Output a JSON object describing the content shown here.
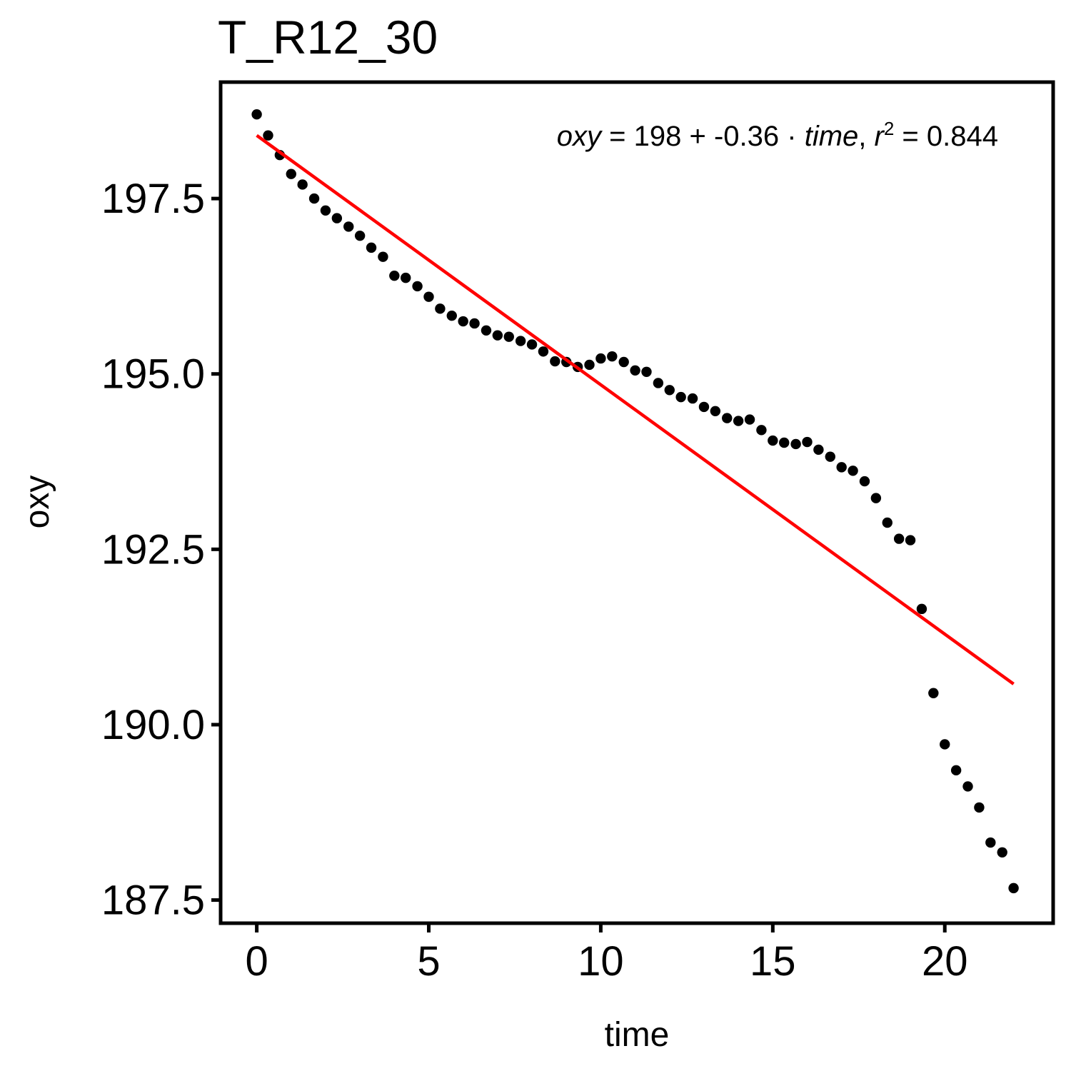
{
  "chart_data": {
    "type": "scatter",
    "title": "T_R12_30",
    "xlabel": "time",
    "ylabel": "oxy",
    "xlim": [
      -1.05,
      23.15
    ],
    "ylim": [
      187.17,
      199.16
    ],
    "x_ticks": [
      0,
      5,
      10,
      15,
      20
    ],
    "x_tick_labels": [
      "0",
      "5",
      "10",
      "15",
      "20"
    ],
    "y_ticks": [
      187.5,
      190.0,
      192.5,
      195.0,
      197.5
    ],
    "y_tick_labels": [
      "187.5",
      "190.0",
      "192.5",
      "195.0",
      "197.5"
    ],
    "grid": false,
    "legend": "none",
    "colors": {
      "points": "#000000",
      "fit_line": "#ff0000",
      "frame": "#000000"
    },
    "points": {
      "x": [
        0,
        0.33,
        0.67,
        1.0,
        1.33,
        1.67,
        2.0,
        2.33,
        2.67,
        3.0,
        3.33,
        3.67,
        4.0,
        4.33,
        4.67,
        5.0,
        5.33,
        5.67,
        6.0,
        6.33,
        6.67,
        7.0,
        7.33,
        7.67,
        8.0,
        8.33,
        8.67,
        9.0,
        9.33,
        9.67,
        10.0,
        10.33,
        10.67,
        11.0,
        11.33,
        11.67,
        12.0,
        12.33,
        12.67,
        13.0,
        13.33,
        13.67,
        14.0,
        14.33,
        14.67,
        15.0,
        15.33,
        15.67,
        16.0,
        16.33,
        16.67,
        17.0,
        17.33,
        17.67,
        18.0,
        18.33,
        18.67,
        19.0,
        19.33,
        19.67,
        20.0,
        20.33,
        20.67,
        21.0,
        21.33,
        21.67,
        22.0
      ],
      "y": [
        198.7,
        198.4,
        198.12,
        197.85,
        197.7,
        197.5,
        197.33,
        197.22,
        197.1,
        196.97,
        196.8,
        196.67,
        196.4,
        196.37,
        196.25,
        196.1,
        195.93,
        195.83,
        195.75,
        195.72,
        195.62,
        195.55,
        195.53,
        195.47,
        195.42,
        195.32,
        195.18,
        195.17,
        195.1,
        195.13,
        195.22,
        195.25,
        195.17,
        195.05,
        195.03,
        194.87,
        194.77,
        194.67,
        194.65,
        194.53,
        194.47,
        194.37,
        194.33,
        194.35,
        194.2,
        194.05,
        194.02,
        194.0,
        194.03,
        193.92,
        193.82,
        193.67,
        193.62,
        193.47,
        193.23,
        192.88,
        192.65,
        192.63,
        191.65,
        190.45,
        189.72,
        189.35,
        189.12,
        188.82,
        188.32,
        188.18,
        187.67
      ]
    },
    "fit": {
      "x": [
        0,
        22.0
      ],
      "y": [
        198.4,
        190.58
      ],
      "annotation": {
        "lhs": "oxy",
        "eq": " = ",
        "intercept": "198",
        "plus": " + ",
        "slope": "-0.36",
        "dot": " · ",
        "var": "time",
        "sep": ",  ",
        "r": "r",
        "sq": "2",
        "r2": " = 0.844"
      }
    }
  }
}
